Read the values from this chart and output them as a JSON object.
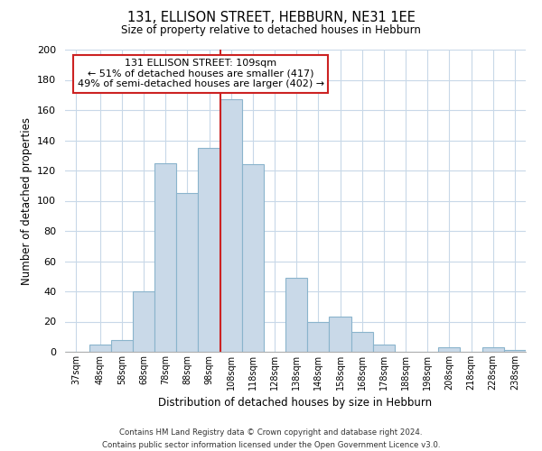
{
  "title_line1": "131, ELLISON STREET, HEBBURN, NE31 1EE",
  "title_line2": "Size of property relative to detached houses in Hebburn",
  "xlabel": "Distribution of detached houses by size in Hebburn",
  "ylabel": "Number of detached properties",
  "bin_labels": [
    "37sqm",
    "48sqm",
    "58sqm",
    "68sqm",
    "78sqm",
    "88sqm",
    "98sqm",
    "108sqm",
    "118sqm",
    "128sqm",
    "138sqm",
    "148sqm",
    "158sqm",
    "168sqm",
    "178sqm",
    "188sqm",
    "198sqm",
    "208sqm",
    "218sqm",
    "228sqm",
    "238sqm"
  ],
  "bin_centers": [
    42,
    53,
    63,
    73,
    83,
    93,
    103,
    113,
    123,
    133,
    143,
    153,
    163,
    173,
    183,
    193,
    203,
    213,
    223,
    233,
    243
  ],
  "bin_lefts": [
    37,
    48,
    58,
    68,
    78,
    88,
    98,
    108,
    118,
    128,
    138,
    148,
    158,
    168,
    178,
    188,
    198,
    208,
    218,
    228,
    238
  ],
  "bin_widths": [
    11,
    10,
    10,
    10,
    10,
    10,
    10,
    10,
    10,
    10,
    10,
    10,
    10,
    10,
    10,
    10,
    10,
    10,
    10,
    10,
    10
  ],
  "bar_heights": [
    0,
    5,
    8,
    40,
    125,
    105,
    135,
    167,
    124,
    0,
    49,
    20,
    23,
    13,
    5,
    0,
    0,
    3,
    0,
    3,
    1
  ],
  "bar_color": "#c9d9e8",
  "bar_edge_color": "#8ab4cc",
  "vline_x": 108,
  "vline_color": "#cc2222",
  "annotation_title": "131 ELLISON STREET: 109sqm",
  "annotation_line1": "← 51% of detached houses are smaller (417)",
  "annotation_line2": "49% of semi-detached houses are larger (402) →",
  "annotation_box_color": "#ffffff",
  "annotation_box_edge": "#cc2222",
  "ylim": [
    0,
    200
  ],
  "yticks": [
    0,
    20,
    40,
    60,
    80,
    100,
    120,
    140,
    160,
    180,
    200
  ],
  "xlim_left": 37,
  "xlim_right": 248,
  "footnote1": "Contains HM Land Registry data © Crown copyright and database right 2024.",
  "footnote2": "Contains public sector information licensed under the Open Government Licence v3.0."
}
